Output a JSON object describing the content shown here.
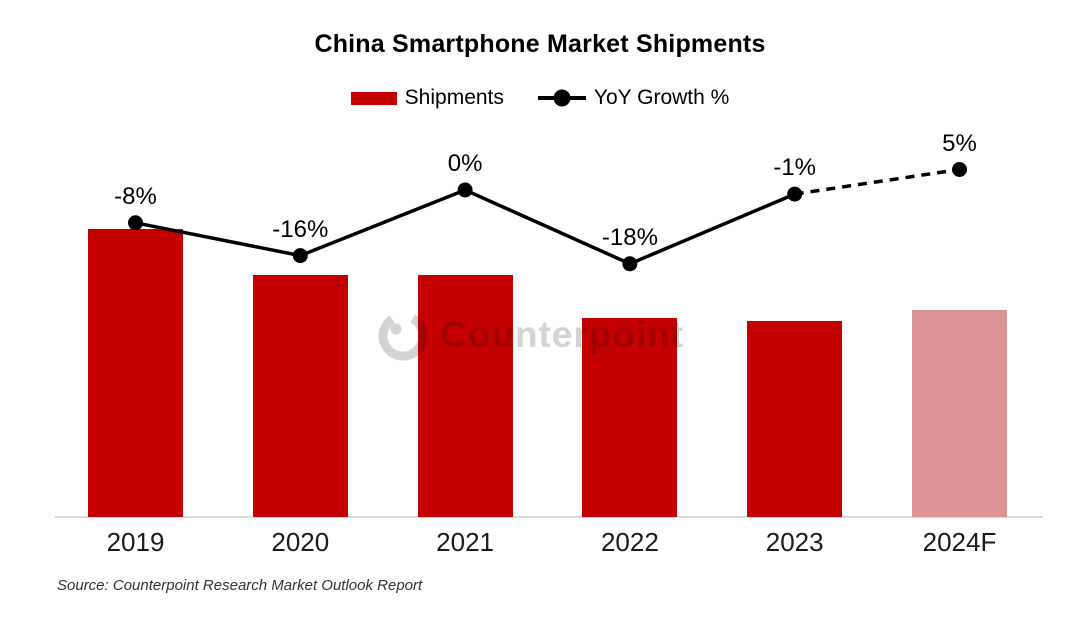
{
  "title": "China Smartphone Market Shipments",
  "legend": {
    "shipments_label": "Shipments",
    "yoy_label": "YoY Growth %"
  },
  "source_note": "Source: Counterpoint Research Market Outlook Report",
  "watermark_text": "Counterpoint",
  "colors": {
    "bar": "#C40000",
    "bar_forecast": "#DB9593",
    "line": "#000000",
    "marker": "#000000",
    "axis": "#D9D9D9",
    "watermark": "#D4D4D4",
    "tick_text": "#1A1A1A"
  },
  "chart_data": {
    "type": "bar",
    "subtype": "bar-line-combo",
    "title": "China Smartphone Market Shipments",
    "categories": [
      "2019",
      "2020",
      "2021",
      "2022",
      "2023",
      "2024F"
    ],
    "series": [
      {
        "name": "Shipments",
        "type": "bar",
        "note": "absolute units not labeled on chart; values are relative index, 2019 = 100",
        "values": [
          100,
          84,
          84,
          69,
          68,
          72
        ]
      },
      {
        "name": "YoY Growth %",
        "type": "line",
        "values": [
          -8,
          -16,
          0,
          -18,
          -1,
          5
        ],
        "labels": [
          "-8%",
          "-16%",
          "0%",
          "-18%",
          "-1%",
          "5%"
        ]
      }
    ],
    "forecast_category": "2024F",
    "forecast_bar_lighter": true,
    "forecast_line_dashed": true,
    "legend_position": "top-center",
    "grid": false,
    "value_axes_visible": false,
    "x_axis_line_visible": true
  }
}
